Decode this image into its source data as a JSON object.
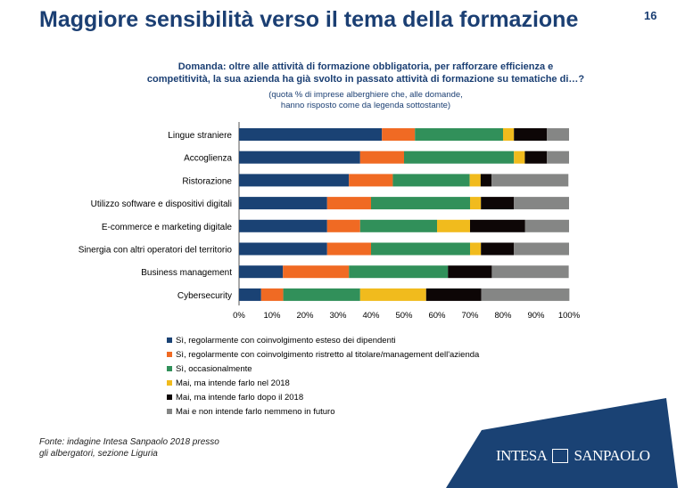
{
  "page": {
    "title": "Maggiore sensibilità verso il tema della formazione",
    "number": "16"
  },
  "question": {
    "line1": "Domanda: oltre alle attività di formazione obbligatoria, per rafforzare efficienza e",
    "line2": "competitività, la sua azienda ha già svolto in passato attività di formazione su tematiche di…?",
    "note1": "(quota % di imprese alberghiere che, alle domande,",
    "note2": "hanno risposto come da legenda sottostante)"
  },
  "source": {
    "line1": "Fonte: indagine Intesa Sanpaolo 2018 presso",
    "line2": "gli albergatori, sezione Liguria"
  },
  "logo": {
    "text_left": "INTESA",
    "text_right": "SANPAOLO"
  },
  "chart_data": {
    "type": "bar",
    "orientation": "horizontal",
    "stacked": true,
    "categories": [
      "Lingue straniere",
      "Accoglienza",
      "Ristorazione",
      "Utilizzo software e dispositivi digitali",
      "E-commerce e marketing digitale",
      "Sinergia con altri operatori del territorio",
      "Business management",
      "Cybersecurity"
    ],
    "xlim": [
      0,
      100
    ],
    "xticks": [
      "0%",
      "10%",
      "20%",
      "30%",
      "40%",
      "50%",
      "60%",
      "70%",
      "80%",
      "90%",
      "100%"
    ],
    "legend_position": "bottom",
    "series": [
      {
        "name": "Sì, regolarmente con coinvolgimento esteso dei dipendenti",
        "color": "#1a4274",
        "values": [
          43.3,
          36.7,
          33.3,
          26.7,
          26.7,
          26.7,
          13.3,
          6.7
        ]
      },
      {
        "name": "Sì, regolarmente con coinvolgimento ristretto al titolare/management dell'azienda",
        "color": "#f06a23",
        "values": [
          10,
          13.3,
          13.3,
          13.3,
          10,
          13.3,
          20,
          6.7
        ]
      },
      {
        "name": "Sì, occasionalmente",
        "color": "#31905a",
        "values": [
          26.7,
          33.3,
          23.3,
          30,
          23.3,
          30,
          30,
          23.3
        ]
      },
      {
        "name": "Mai, ma intende farlo nel 2018",
        "color": "#f1bb1d",
        "values": [
          3.3,
          3.3,
          3.3,
          3.3,
          10,
          3.3,
          0,
          20
        ]
      },
      {
        "name": "Mai, ma intende farlo dopo il 2018",
        "color": "#0d0606",
        "values": [
          10,
          6.7,
          3.3,
          10,
          16.7,
          10,
          13.3,
          16.7
        ]
      },
      {
        "name": "Mai e non intende farlo nemmeno in futuro",
        "color": "#858685",
        "values": [
          6.7,
          6.7,
          23.3,
          16.7,
          13.3,
          16.7,
          23.3,
          26.7
        ]
      }
    ]
  }
}
